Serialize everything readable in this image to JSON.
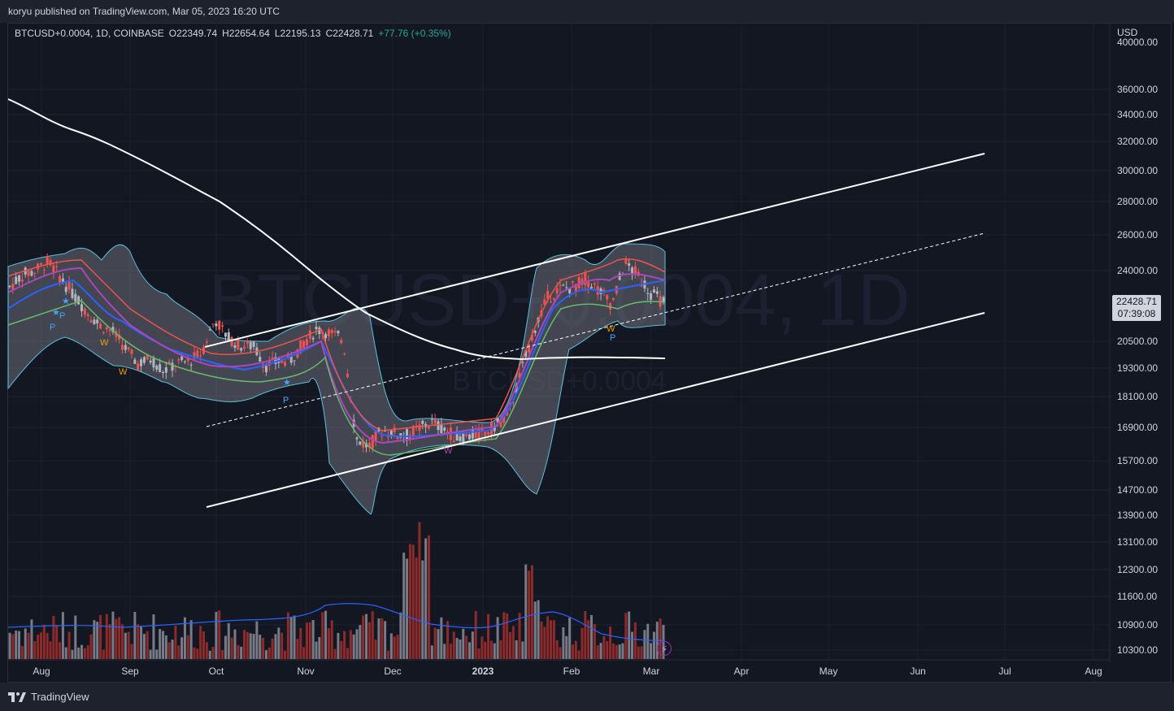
{
  "topbar": {
    "publisher": "koryu published on TradingView.com, Mar 05, 2023 16:20 UTC"
  },
  "legend": {
    "symbol": "BTCUSD+0.0004, 1D, COINBASE",
    "open": "O22349.74",
    "high": "H22654.64",
    "low": "L22195.13",
    "close": "C22428.71",
    "change": "+77.76 (+0.35%)"
  },
  "watermark": {
    "main": "BTCUSD+0.0004, 1D",
    "sub": "BTCUSD+0.0004"
  },
  "price_axis": {
    "unit": "USD",
    "ticks": [
      "40000.00",
      "36000.00",
      "34000.00",
      "32000.00",
      "30000.00",
      "28000.00",
      "26000.00",
      "24000.00",
      "20500.00",
      "19300.00",
      "18100.00",
      "16900.00",
      "15700.00",
      "14700.00",
      "13900.00",
      "13100.00",
      "12300.00",
      "11600.00",
      "10900.00",
      "10300.00"
    ],
    "last_price": "22428.71",
    "countdown": "07:39:08"
  },
  "time_axis": {
    "labels": [
      "Aug",
      "Sep",
      "Oct",
      "Nov",
      "Dec",
      "2023",
      "Feb",
      "Mar",
      "Apr",
      "May",
      "Jun",
      "Jul",
      "Aug"
    ]
  },
  "markers": {
    "p_label": "P",
    "w_label": "W",
    "star": "★"
  },
  "footer": {
    "brand": "TradingView",
    "logo_icon": "tradingview-logo-icon"
  },
  "colors": {
    "background": "#131722",
    "up": "#b2b5be",
    "down": "#ef5350",
    "volume_up": "#787b86",
    "volume_down": "#8e2a2a",
    "ma_blue": "#2962ff",
    "trend_white": "#ffffff",
    "band_gray": "#808080"
  },
  "chart_data": {
    "type": "candlestick",
    "x_labels": [
      "Aug",
      "Sep",
      "Oct",
      "Nov",
      "Dec",
      "2023",
      "Feb",
      "Mar"
    ],
    "ylim": [
      10300,
      40000
    ],
    "last": 22428.71,
    "price_path": [
      23200,
      23800,
      24000,
      24500,
      23600,
      22800,
      22000,
      21300,
      21000,
      20200,
      19500,
      19700,
      19200,
      19500,
      19600,
      20000,
      21600,
      20700,
      20300,
      20300,
      19400,
      19600,
      19700,
      20500,
      21100,
      20900,
      20600,
      16500,
      16200,
      16800,
      16700,
      16600,
      16900,
      17100,
      16800,
      16500,
      16600,
      16700,
      17000,
      17500,
      19300,
      21200,
      22700,
      23100,
      23200,
      23600,
      23000,
      22300,
      24400,
      23800,
      22900,
      22428
    ]
  }
}
